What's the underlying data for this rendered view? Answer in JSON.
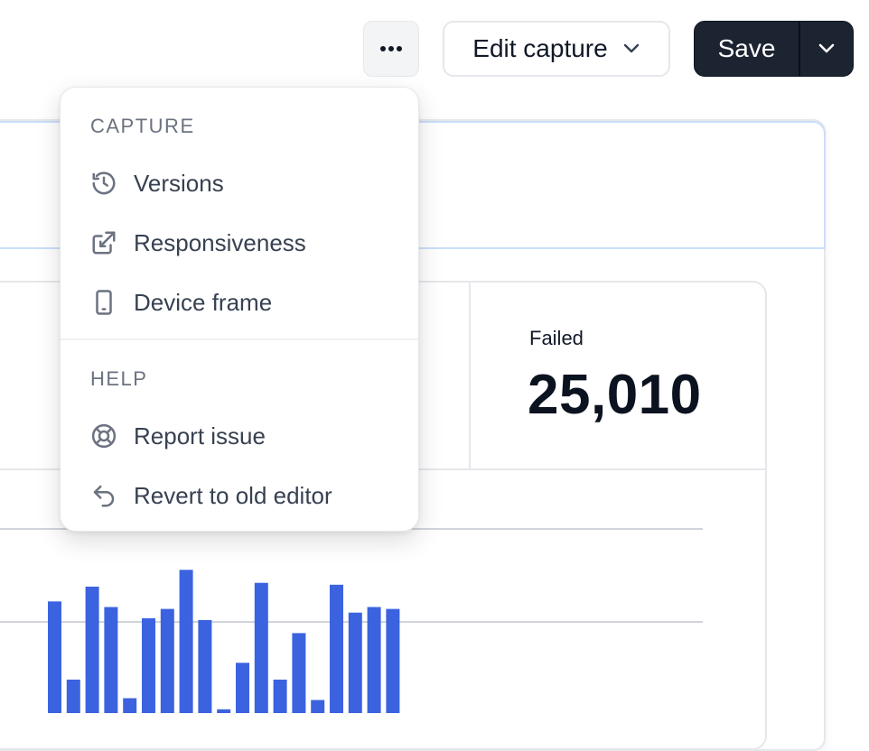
{
  "toolbar": {
    "more_icon": "ellipsis-icon",
    "edit_label": "Edit capture",
    "save_label": "Save"
  },
  "stats": {
    "failed_label": "Failed",
    "failed_value": "25,010"
  },
  "menu": {
    "capture_section": "CAPTURE",
    "help_section": "HELP",
    "items": [
      {
        "label": "Versions",
        "icon": "history-icon"
      },
      {
        "label": "Responsiveness",
        "icon": "external-link-icon"
      },
      {
        "label": "Device frame",
        "icon": "mobile-device-icon"
      },
      {
        "label": "Report issue",
        "icon": "lifebuoy-icon"
      },
      {
        "label": "Revert to old editor",
        "icon": "undo-arrow-icon"
      }
    ]
  },
  "chart_data": {
    "type": "bar",
    "values": [
      0.61,
      0.19,
      0.69,
      0.58,
      0.09,
      0.52,
      0.57,
      0.78,
      0.51,
      0.03,
      0.28,
      0.71,
      0.19,
      0.44,
      0.08,
      0.7,
      0.55,
      0.58,
      0.57
    ],
    "colors": {
      "bar": "#3b63e0",
      "grid": "#d1d5db"
    }
  }
}
